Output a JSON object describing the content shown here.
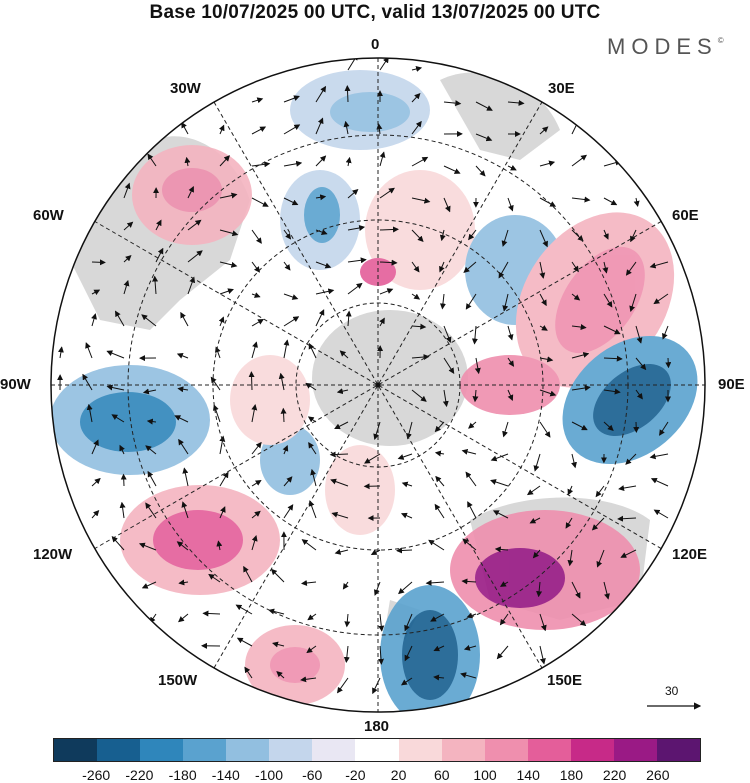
{
  "title": "Base 10/07/2025 00 UTC, valid 13/07/2025 00 UTC",
  "brand": "MODES",
  "brand_mark": "©",
  "longitude_labels": {
    "l0": "0",
    "l30e": "30E",
    "l60e": "60E",
    "l90e": "90E",
    "l120e": "120E",
    "l150e": "150E",
    "l180": "180",
    "l150w": "150W",
    "l120w": "120W",
    "l90w": "90W",
    "l60w": "60W",
    "l30w": "30W"
  },
  "reference_vector": {
    "value": "30"
  },
  "colorbar": {
    "colors": [
      "#0f3a5c",
      "#175f90",
      "#2f86bb",
      "#5aa2cf",
      "#92bfe0",
      "#c4d6ec",
      "#e9e7f3",
      "#ffffff",
      "#f9d9da",
      "#f4b4c0",
      "#ef8fae",
      "#e45e9a",
      "#c72a88",
      "#9a1a85",
      "#5c1570"
    ],
    "tick_labels": [
      "-260",
      "-220",
      "-180",
      "-140",
      "-100",
      "-60",
      "-20",
      "20",
      "60",
      "100",
      "140",
      "180",
      "220",
      "260"
    ]
  }
}
